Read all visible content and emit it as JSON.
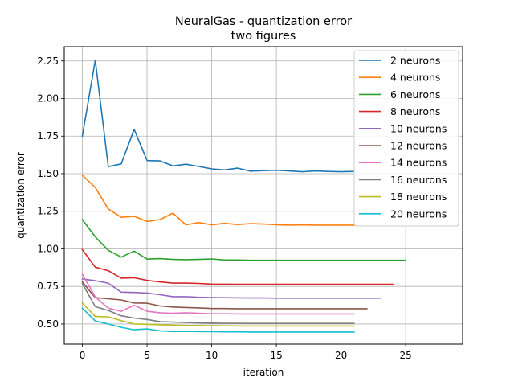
{
  "chart_data": {
    "type": "line",
    "title": "NeuralGas - quantization error",
    "subtitle": "two figures",
    "xlabel": "iteration",
    "ylabel": "quantization error",
    "xlim": [
      -1.4,
      29.4
    ],
    "ylim": [
      0.366,
      2.345
    ],
    "xticks": [
      0,
      5,
      10,
      15,
      20,
      25
    ],
    "yticks": [
      0.5,
      0.75,
      1.0,
      1.25,
      1.5,
      1.75,
      2.0,
      2.25
    ],
    "grid": true,
    "legend_position": "top-right",
    "series": [
      {
        "name": "2 neurons",
        "color": "#1f77b4",
        "values": [
          1.75,
          2.255,
          1.547,
          1.565,
          1.795,
          1.587,
          1.585,
          1.552,
          1.563,
          1.548,
          1.532,
          1.525,
          1.537,
          1.517,
          1.52,
          1.523,
          1.518,
          1.513,
          1.518,
          1.515,
          1.513,
          1.515
        ]
      },
      {
        "name": "4 neurons",
        "color": "#ff7f0e",
        "values": [
          1.49,
          1.408,
          1.265,
          1.21,
          1.217,
          1.182,
          1.195,
          1.238,
          1.16,
          1.175,
          1.16,
          1.17,
          1.162,
          1.168,
          1.165,
          1.161,
          1.158,
          1.16,
          1.158,
          1.158,
          1.158,
          1.158
        ]
      },
      {
        "name": "6 neurons",
        "color": "#2ca02c",
        "values": [
          1.195,
          1.08,
          0.99,
          0.945,
          0.985,
          0.932,
          0.935,
          0.93,
          0.928,
          0.93,
          0.933,
          0.926,
          0.926,
          0.924,
          0.924,
          0.924,
          0.924,
          0.924,
          0.924,
          0.924,
          0.924,
          0.924,
          0.924,
          0.924,
          0.924,
          0.924
        ]
      },
      {
        "name": "8 neurons",
        "color": "#d62728",
        "values": [
          0.995,
          0.878,
          0.855,
          0.805,
          0.808,
          0.79,
          0.78,
          0.772,
          0.772,
          0.77,
          0.765,
          0.765,
          0.764,
          0.764,
          0.764,
          0.764,
          0.764,
          0.764,
          0.764,
          0.764,
          0.764,
          0.764,
          0.764,
          0.764,
          0.764
        ]
      },
      {
        "name": "10 neurons",
        "color": "#9467bd",
        "values": [
          0.8,
          0.788,
          0.772,
          0.712,
          0.71,
          0.706,
          0.695,
          0.682,
          0.682,
          0.678,
          0.676,
          0.675,
          0.674,
          0.673,
          0.673,
          0.672,
          0.672,
          0.672,
          0.672,
          0.672,
          0.672,
          0.672,
          0.672,
          0.672
        ]
      },
      {
        "name": "12 neurons",
        "color": "#8c564b",
        "values": [
          0.78,
          0.675,
          0.668,
          0.66,
          0.64,
          0.638,
          0.62,
          0.613,
          0.61,
          0.607,
          0.603,
          0.603,
          0.602,
          0.602,
          0.602,
          0.602,
          0.602,
          0.602,
          0.602,
          0.602,
          0.602,
          0.602,
          0.602
        ]
      },
      {
        "name": "14 neurons",
        "color": "#e377c2",
        "values": [
          0.83,
          0.68,
          0.605,
          0.585,
          0.625,
          0.585,
          0.575,
          0.572,
          0.575,
          0.572,
          0.568,
          0.568,
          0.567,
          0.567,
          0.567,
          0.567,
          0.567,
          0.567,
          0.567,
          0.567,
          0.567,
          0.567
        ]
      },
      {
        "name": "16 neurons",
        "color": "#7f7f7f",
        "values": [
          0.77,
          0.615,
          0.59,
          0.555,
          0.54,
          0.53,
          0.515,
          0.513,
          0.51,
          0.508,
          0.506,
          0.505,
          0.505,
          0.504,
          0.504,
          0.504,
          0.504,
          0.504,
          0.504,
          0.504,
          0.504,
          0.504
        ]
      },
      {
        "name": "18 neurons",
        "color": "#bcbd22",
        "values": [
          0.64,
          0.55,
          0.548,
          0.522,
          0.5,
          0.498,
          0.495,
          0.492,
          0.49,
          0.49,
          0.489,
          0.488,
          0.487,
          0.487,
          0.487,
          0.487,
          0.487,
          0.487,
          0.487,
          0.487,
          0.487,
          0.487
        ]
      },
      {
        "name": "20 neurons",
        "color": "#17becf",
        "values": [
          0.605,
          0.52,
          0.5,
          0.478,
          0.462,
          0.467,
          0.455,
          0.45,
          0.451,
          0.45,
          0.449,
          0.448,
          0.448,
          0.447,
          0.447,
          0.447,
          0.447,
          0.447,
          0.447,
          0.447,
          0.447,
          0.447
        ]
      }
    ]
  }
}
